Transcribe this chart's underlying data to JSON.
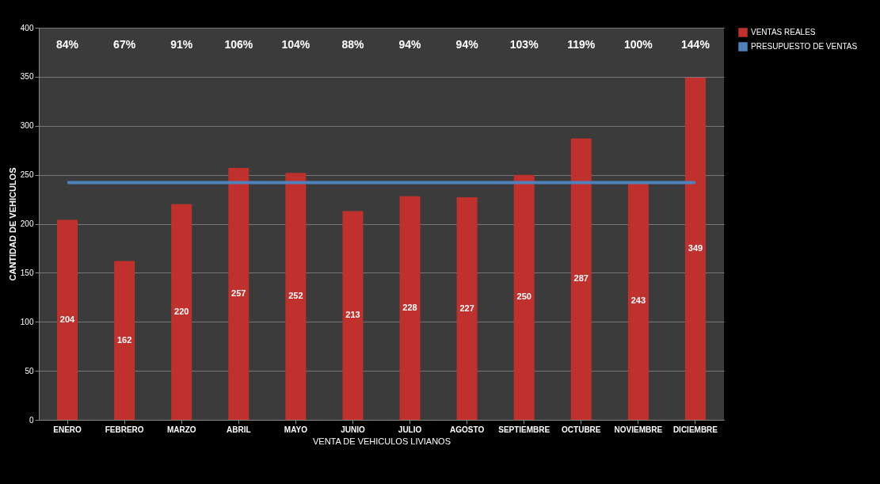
{
  "chart_data": {
    "type": "bar",
    "xlabel": "VENTA DE VEHICULOS LIVIANOS",
    "ylabel": "CANTIDAD DE VEHICULOS",
    "categories": [
      "ENERO",
      "FEBRERO",
      "MARZO",
      "ABRIL",
      "MAYO",
      "JUNIO",
      "JULIO",
      "AGOSTO",
      "SEPTIEMBRE",
      "OCTUBRE",
      "NOVIEMBRE",
      "DICIEMBRE"
    ],
    "series": [
      {
        "name": "VENTAS REALES",
        "color": "#c0302c",
        "values": [
          204,
          162,
          220,
          257,
          252,
          213,
          228,
          227,
          250,
          287,
          243,
          349
        ],
        "value_labels": [
          "204",
          "162",
          "220",
          "257",
          "252",
          "213",
          "228",
          "227",
          "250",
          "287",
          "243",
          "349"
        ]
      },
      {
        "name": "PRESUPUESTO DE VENTAS",
        "type": "line",
        "color": "#4f81bd",
        "values": [
          242,
          242,
          242,
          242,
          242,
          242,
          242,
          242,
          242,
          242,
          242,
          242
        ]
      }
    ],
    "annotations": [
      "84%",
      "67%",
      "91%",
      "106%",
      "104%",
      "88%",
      "94%",
      "94%",
      "103%",
      "119%",
      "100%",
      "144%"
    ],
    "ylim": [
      0,
      400
    ],
    "yticks": [
      0,
      50,
      100,
      150,
      200,
      250,
      300,
      350,
      400
    ],
    "grid": "y",
    "legend": "right"
  }
}
